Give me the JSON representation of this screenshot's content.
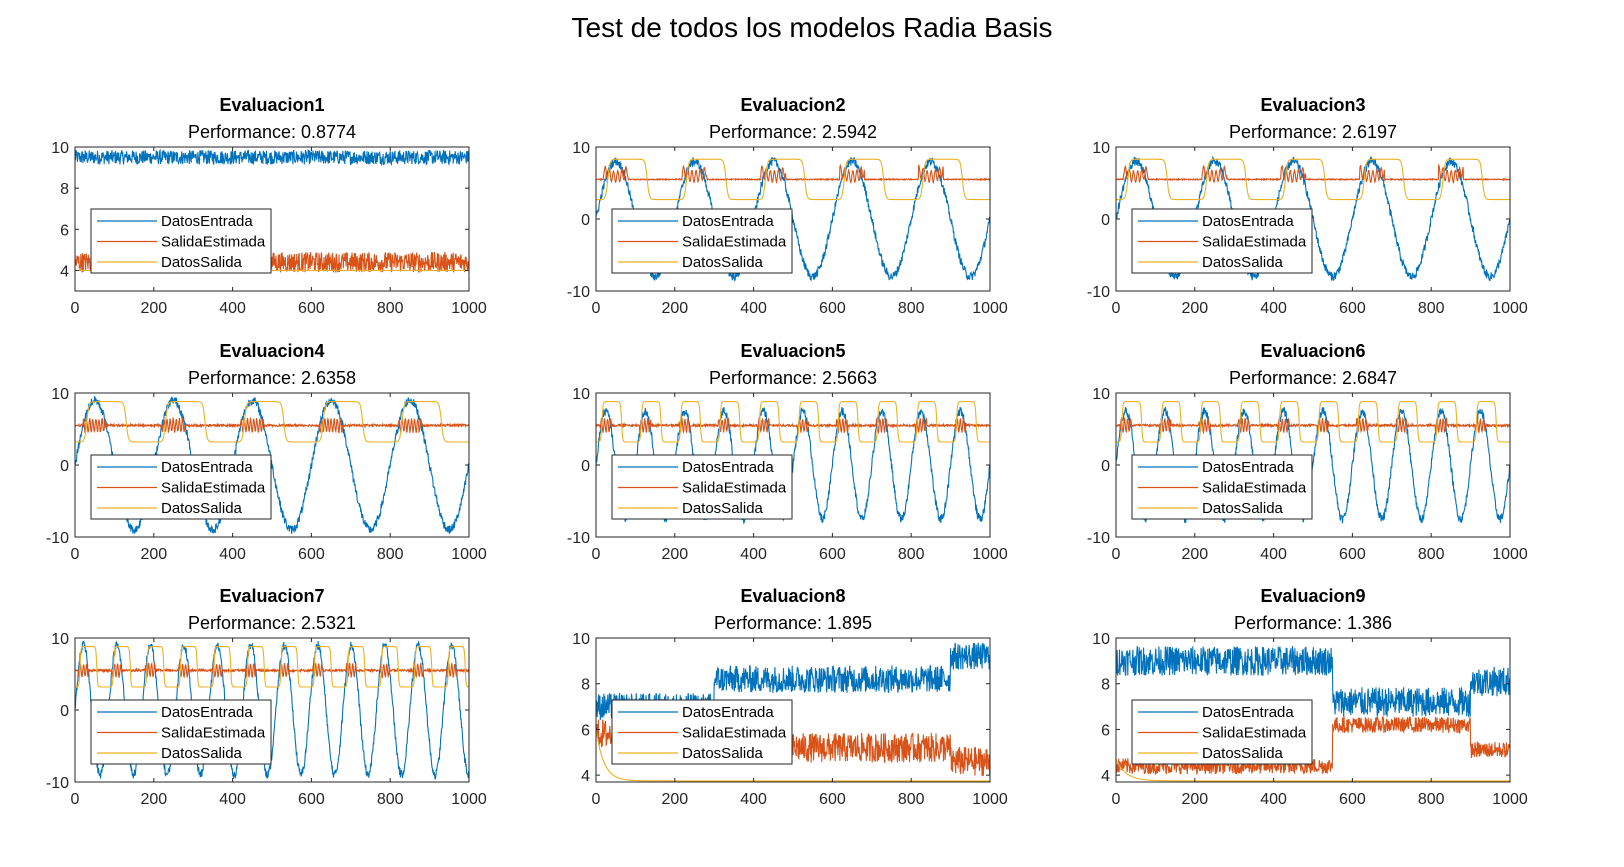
{
  "figure": {
    "title": "Test de todos los modelos Radia Basis"
  },
  "legend_labels": [
    "DatosEntrada",
    "SalidaEstimada",
    "DatosSalida"
  ],
  "colors": {
    "entrada": "#0072BD",
    "estimada": "#D95319",
    "salida": "#EDB120",
    "axes": "#262626"
  },
  "chart_data": [
    {
      "type": "line",
      "title": "Evaluacion1",
      "subtitle": "Performance: 0.8774",
      "xlim": [
        0,
        1000
      ],
      "ylim": [
        3,
        10
      ],
      "xticks": [
        0,
        200,
        400,
        600,
        800,
        1000
      ],
      "yticks": [
        4,
        6,
        8,
        10
      ],
      "legend": "bottom-left",
      "series": [
        {
          "name": "DatosEntrada",
          "pattern": "flat_noise",
          "base": 9.5,
          "noise": 0.7
        },
        {
          "name": "SalidaEstimada",
          "pattern": "flat_noise",
          "base": 4.4,
          "noise": 1.0
        },
        {
          "name": "DatosSalida",
          "pattern": "flat",
          "base": 4.0
        }
      ]
    },
    {
      "type": "line",
      "title": "Evaluacion2",
      "subtitle": "Performance: 2.5942",
      "xlim": [
        0,
        1000
      ],
      "ylim": [
        -10,
        10
      ],
      "xticks": [
        0,
        200,
        400,
        600,
        800,
        1000
      ],
      "yticks": [
        -10,
        0,
        10
      ],
      "legend": "bottom-left",
      "series": [
        {
          "name": "DatosEntrada",
          "pattern": "sine",
          "amp": 8,
          "period": 200,
          "phase": 0,
          "noise": 1.2
        },
        {
          "name": "SalidaEstimada",
          "pattern": "bumps",
          "base": 5.5,
          "period": 200,
          "phase": 0
        },
        {
          "name": "DatosSalida",
          "pattern": "square_sine",
          "base": 5.5,
          "period": 200,
          "phase": 0
        }
      ]
    },
    {
      "type": "line",
      "title": "Evaluacion3",
      "subtitle": "Performance: 2.6197",
      "xlim": [
        0,
        1000
      ],
      "ylim": [
        -10,
        10
      ],
      "xticks": [
        0,
        200,
        400,
        600,
        800,
        1000
      ],
      "yticks": [
        -10,
        0,
        10
      ],
      "legend": "bottom-left",
      "series": [
        {
          "name": "DatosEntrada",
          "pattern": "sine",
          "amp": 8,
          "period": 200,
          "phase": 0,
          "noise": 1.2
        },
        {
          "name": "SalidaEstimada",
          "pattern": "bumps",
          "base": 5.5,
          "period": 200,
          "phase": 0
        },
        {
          "name": "DatosSalida",
          "pattern": "square_sine",
          "base": 5.5,
          "period": 200,
          "phase": 0
        }
      ]
    },
    {
      "type": "line",
      "title": "Evaluacion4",
      "subtitle": "Performance: 2.6358",
      "xlim": [
        0,
        1000
      ],
      "ylim": [
        -10,
        10
      ],
      "xticks": [
        0,
        200,
        400,
        600,
        800,
        1000
      ],
      "yticks": [
        -10,
        0,
        10
      ],
      "legend": "bottom-left",
      "series": [
        {
          "name": "DatosEntrada",
          "pattern": "sine",
          "amp": 9,
          "period": 200,
          "phase": 0,
          "noise": 1.2
        },
        {
          "name": "SalidaEstimada",
          "pattern": "bumps_small",
          "base": 5.5,
          "period": 200,
          "phase": 0
        },
        {
          "name": "DatosSalida",
          "pattern": "square_sine",
          "base": 6.0,
          "period": 200,
          "phase": 0
        }
      ]
    },
    {
      "type": "line",
      "title": "Evaluacion5",
      "subtitle": "Performance: 2.5663",
      "xlim": [
        0,
        1000
      ],
      "ylim": [
        -10,
        10
      ],
      "xticks": [
        0,
        200,
        400,
        600,
        800,
        1000
      ],
      "yticks": [
        -10,
        0,
        10
      ],
      "legend": "bottom-left",
      "series": [
        {
          "name": "DatosEntrada",
          "pattern": "sine",
          "amp": 7.5,
          "period": 100,
          "phase": 0,
          "noise": 1.2
        },
        {
          "name": "SalidaEstimada",
          "pattern": "bumps_small",
          "base": 5.5,
          "period": 100,
          "phase": 0
        },
        {
          "name": "DatosSalida",
          "pattern": "square_sine",
          "base": 6.0,
          "period": 100,
          "phase": 0
        }
      ]
    },
    {
      "type": "line",
      "title": "Evaluacion6",
      "subtitle": "Performance: 2.6847",
      "xlim": [
        0,
        1000
      ],
      "ylim": [
        -10,
        10
      ],
      "xticks": [
        0,
        200,
        400,
        600,
        800,
        1000
      ],
      "yticks": [
        -10,
        0,
        10
      ],
      "legend": "bottom-left",
      "series": [
        {
          "name": "DatosEntrada",
          "pattern": "sine",
          "amp": 7.5,
          "period": 100,
          "phase": 0,
          "noise": 1.2
        },
        {
          "name": "SalidaEstimada",
          "pattern": "bumps_small",
          "base": 5.5,
          "period": 100,
          "phase": 0
        },
        {
          "name": "DatosSalida",
          "pattern": "square_sine",
          "base": 6.0,
          "period": 100,
          "phase": 0
        }
      ]
    },
    {
      "type": "line",
      "title": "Evaluacion7",
      "subtitle": "Performance: 2.5321",
      "xlim": [
        0,
        1000
      ],
      "ylim": [
        -10,
        10
      ],
      "xticks": [
        0,
        200,
        400,
        600,
        800,
        1000
      ],
      "yticks": [
        -10,
        0,
        10
      ],
      "legend": "bottom-left",
      "series": [
        {
          "name": "DatosEntrada",
          "pattern": "sine",
          "amp": 9,
          "period": 85,
          "phase": 0,
          "noise": 1.2
        },
        {
          "name": "SalidaEstimada",
          "pattern": "bumps_small",
          "base": 5.5,
          "period": 85,
          "phase": 0
        },
        {
          "name": "DatosSalida",
          "pattern": "square_sine",
          "base": 6.0,
          "period": 85,
          "phase": 0
        }
      ]
    },
    {
      "type": "line",
      "title": "Evaluacion8",
      "subtitle": "Performance: 1.895",
      "xlim": [
        0,
        1000
      ],
      "ylim": [
        3.7,
        10
      ],
      "xticks": [
        0,
        200,
        400,
        600,
        800,
        1000
      ],
      "yticks": [
        4,
        6,
        8,
        10
      ],
      "legend": "bottom-left",
      "series": [
        {
          "name": "DatosEntrada",
          "pattern": "steps_noise",
          "noise": 1.2,
          "steps": [
            [
              0,
              7.0
            ],
            [
              300,
              8.2
            ],
            [
              900,
              9.2
            ]
          ]
        },
        {
          "name": "SalidaEstimada",
          "pattern": "steps_noise",
          "noise": 1.3,
          "steps": [
            [
              0,
              5.8
            ],
            [
              300,
              5.2
            ],
            [
              900,
              4.6
            ]
          ]
        },
        {
          "name": "DatosSalida",
          "pattern": "decay",
          "start": 6.0,
          "end": 3.75,
          "tau": 20
        }
      ]
    },
    {
      "type": "line",
      "title": "Evaluacion9",
      "subtitle": "Performance: 1.386",
      "xlim": [
        0,
        1000
      ],
      "ylim": [
        3.7,
        10
      ],
      "xticks": [
        0,
        200,
        400,
        600,
        800,
        1000
      ],
      "yticks": [
        4,
        6,
        8,
        10
      ],
      "legend": "bottom-left",
      "series": [
        {
          "name": "DatosEntrada",
          "pattern": "steps_noise",
          "noise": 1.3,
          "steps": [
            [
              0,
              9.0
            ],
            [
              550,
              7.2
            ],
            [
              900,
              8.1
            ]
          ]
        },
        {
          "name": "SalidaEstimada",
          "pattern": "steps_noise",
          "noise": 0.7,
          "steps": [
            [
              0,
              4.4
            ],
            [
              550,
              6.2
            ],
            [
              900,
              5.1
            ]
          ]
        },
        {
          "name": "DatosSalida",
          "pattern": "decay",
          "start": 4.7,
          "end": 3.75,
          "tau": 25
        }
      ]
    }
  ]
}
